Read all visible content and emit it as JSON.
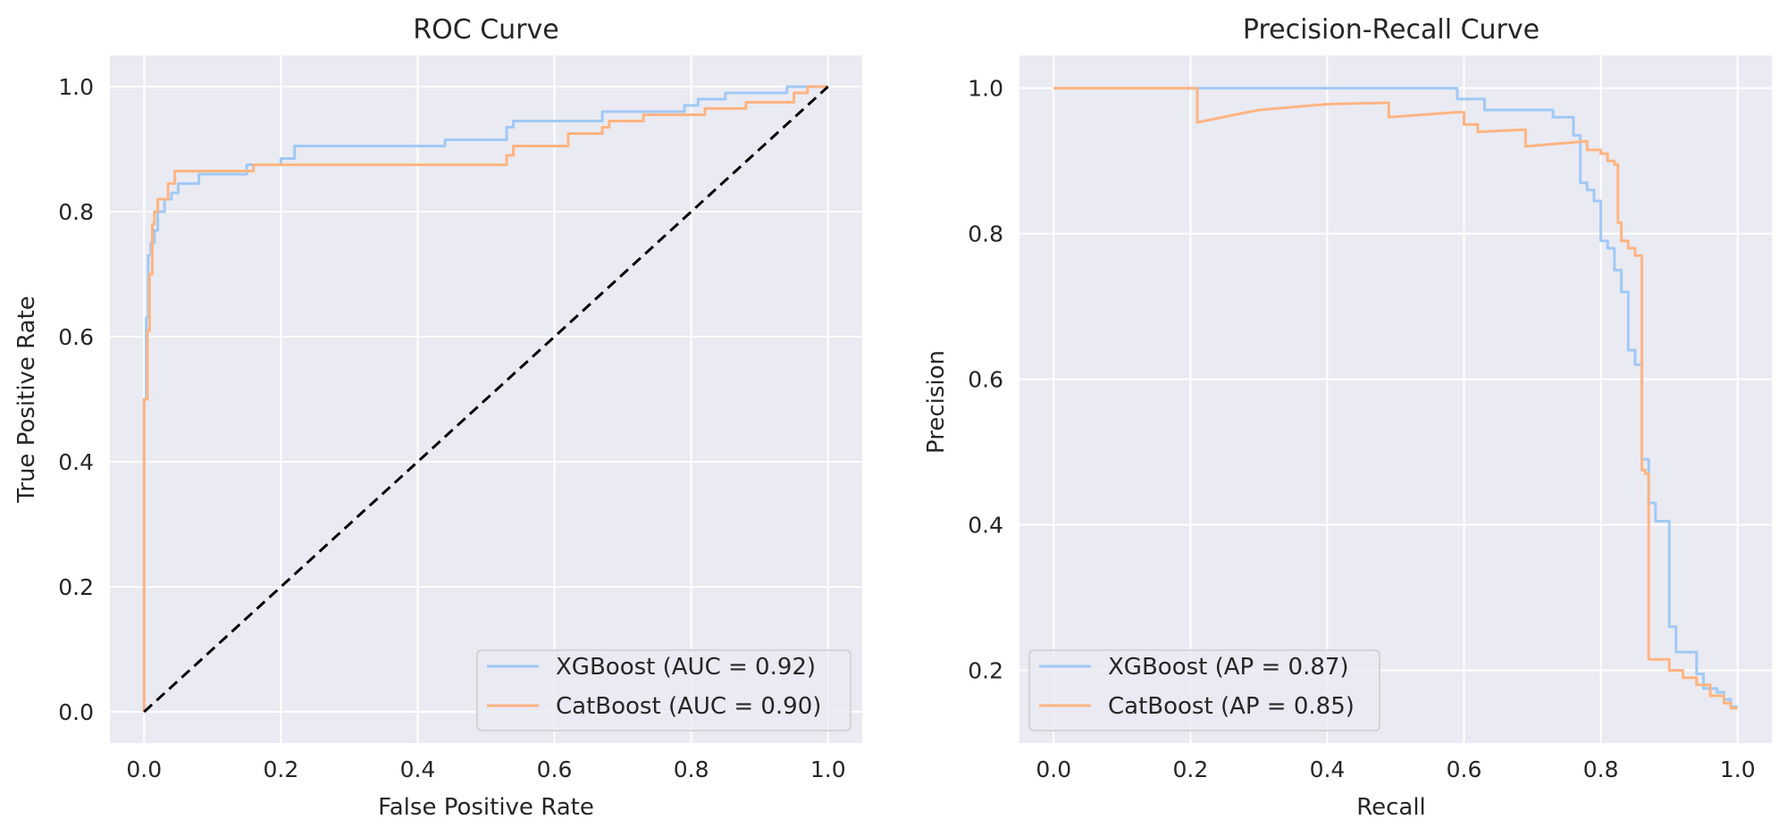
{
  "chart_data": [
    {
      "type": "line",
      "title": "ROC Curve",
      "xlabel": "False Positive Rate",
      "ylabel": "True Positive Rate",
      "xlim": [
        -0.05,
        1.05
      ],
      "ylim": [
        -0.05,
        1.05
      ],
      "xticks": [
        "0.0",
        "0.2",
        "0.4",
        "0.6",
        "0.8",
        "1.0"
      ],
      "yticks": [
        "0.0",
        "0.2",
        "0.4",
        "0.6",
        "0.8",
        "1.0"
      ],
      "grid": true,
      "legend_position": "lower right",
      "series": [
        {
          "name": "XGBoost (AUC = 0.92)",
          "color": "#a1c9f4",
          "x": [
            0,
            0,
            0.003,
            0.003,
            0.006,
            0.006,
            0.01,
            0.01,
            0.015,
            0.015,
            0.02,
            0.02,
            0.03,
            0.03,
            0.04,
            0.04,
            0.05,
            0.05,
            0.08,
            0.08,
            0.15,
            0.15,
            0.2,
            0.2,
            0.22,
            0.22,
            0.44,
            0.44,
            0.53,
            0.53,
            0.54,
            0.54,
            0.67,
            0.67,
            0.79,
            0.79,
            0.81,
            0.81,
            0.85,
            0.85,
            0.94,
            0.94,
            1.0
          ],
          "y": [
            0,
            0.5,
            0.5,
            0.63,
            0.63,
            0.73,
            0.73,
            0.75,
            0.75,
            0.77,
            0.77,
            0.8,
            0.8,
            0.82,
            0.82,
            0.83,
            0.83,
            0.845,
            0.845,
            0.86,
            0.86,
            0.875,
            0.875,
            0.885,
            0.885,
            0.905,
            0.905,
            0.915,
            0.915,
            0.935,
            0.935,
            0.945,
            0.945,
            0.96,
            0.96,
            0.97,
            0.97,
            0.98,
            0.98,
            0.99,
            0.99,
            1.0,
            1.0
          ]
        },
        {
          "name": "CatBoost (AUC = 0.90)",
          "color": "#ffb482",
          "x": [
            0,
            0,
            0.005,
            0.005,
            0.008,
            0.008,
            0.012,
            0.012,
            0.015,
            0.015,
            0.02,
            0.02,
            0.035,
            0.035,
            0.045,
            0.045,
            0.16,
            0.16,
            0.53,
            0.53,
            0.54,
            0.54,
            0.62,
            0.62,
            0.67,
            0.67,
            0.68,
            0.68,
            0.73,
            0.73,
            0.82,
            0.82,
            0.88,
            0.88,
            0.95,
            0.95,
            0.97,
            0.97,
            1.0
          ],
          "y": [
            0,
            0.5,
            0.5,
            0.61,
            0.61,
            0.7,
            0.7,
            0.78,
            0.78,
            0.8,
            0.8,
            0.82,
            0.82,
            0.845,
            0.845,
            0.865,
            0.865,
            0.875,
            0.875,
            0.89,
            0.89,
            0.905,
            0.905,
            0.925,
            0.925,
            0.935,
            0.935,
            0.945,
            0.945,
            0.955,
            0.955,
            0.965,
            0.965,
            0.975,
            0.975,
            0.99,
            0.99,
            1.0,
            1.0
          ]
        },
        {
          "name": "",
          "color": "#000000",
          "dashed": true,
          "x": [
            0,
            1
          ],
          "y": [
            0,
            1
          ]
        }
      ]
    },
    {
      "type": "line",
      "title": "Precision-Recall Curve",
      "xlabel": "Recall",
      "ylabel": "Precision",
      "xlim": [
        -0.05,
        1.05
      ],
      "ylim": [
        0.1,
        1.045
      ],
      "xticks": [
        "0.0",
        "0.2",
        "0.4",
        "0.6",
        "0.8",
        "1.0"
      ],
      "yticks": [
        "0.2",
        "0.4",
        "0.6",
        "0.8",
        "1.0"
      ],
      "grid": true,
      "legend_position": "lower left",
      "series": [
        {
          "name": "XGBoost (AP = 0.87)",
          "color": "#a1c9f4",
          "x": [
            0,
            0.59,
            0.59,
            0.63,
            0.63,
            0.73,
            0.73,
            0.76,
            0.76,
            0.77,
            0.77,
            0.78,
            0.78,
            0.79,
            0.79,
            0.8,
            0.8,
            0.81,
            0.81,
            0.82,
            0.82,
            0.83,
            0.83,
            0.84,
            0.84,
            0.85,
            0.85,
            0.86,
            0.86,
            0.87,
            0.87,
            0.88,
            0.88,
            0.89,
            0.89,
            0.9,
            0.9,
            0.91,
            0.91,
            0.92,
            0.92,
            0.94,
            0.94,
            0.95,
            0.95,
            0.97,
            0.97,
            0.98,
            0.98,
            0.99,
            0.99,
            1.0
          ],
          "y": [
            1.0,
            1.0,
            0.985,
            0.985,
            0.97,
            0.97,
            0.96,
            0.96,
            0.935,
            0.935,
            0.87,
            0.87,
            0.86,
            0.86,
            0.845,
            0.845,
            0.79,
            0.79,
            0.78,
            0.78,
            0.75,
            0.75,
            0.72,
            0.72,
            0.64,
            0.64,
            0.62,
            0.62,
            0.49,
            0.49,
            0.43,
            0.43,
            0.405,
            0.405,
            0.405,
            0.405,
            0.26,
            0.26,
            0.225,
            0.225,
            0.225,
            0.225,
            0.195,
            0.195,
            0.175,
            0.175,
            0.17,
            0.17,
            0.16,
            0.16,
            0.15,
            0.15
          ]
        },
        {
          "name": "CatBoost (AP = 0.85)",
          "color": "#ffb482",
          "x": [
            0,
            0.21,
            0.21,
            0.3,
            0.4,
            0.49,
            0.49,
            0.59,
            0.6,
            0.6,
            0.62,
            0.62,
            0.69,
            0.69,
            0.78,
            0.78,
            0.8,
            0.8,
            0.81,
            0.81,
            0.82,
            0.82,
            0.825,
            0.825,
            0.83,
            0.83,
            0.84,
            0.84,
            0.85,
            0.85,
            0.86,
            0.86,
            0.865,
            0.865,
            0.87,
            0.87,
            0.875,
            0.875,
            0.9,
            0.9,
            0.92,
            0.92,
            0.94,
            0.94,
            0.96,
            0.96,
            0.98,
            0.98,
            0.99,
            0.99,
            1.0
          ],
          "y": [
            1.0,
            1.0,
            0.953,
            0.97,
            0.978,
            0.98,
            0.96,
            0.967,
            0.967,
            0.95,
            0.95,
            0.94,
            0.943,
            0.92,
            0.927,
            0.915,
            0.915,
            0.91,
            0.91,
            0.9,
            0.9,
            0.895,
            0.895,
            0.815,
            0.815,
            0.79,
            0.79,
            0.78,
            0.78,
            0.77,
            0.77,
            0.475,
            0.475,
            0.47,
            0.47,
            0.215,
            0.215,
            0.215,
            0.215,
            0.2,
            0.2,
            0.19,
            0.19,
            0.18,
            0.18,
            0.165,
            0.165,
            0.155,
            0.155,
            0.148,
            0.148
          ]
        }
      ]
    }
  ]
}
